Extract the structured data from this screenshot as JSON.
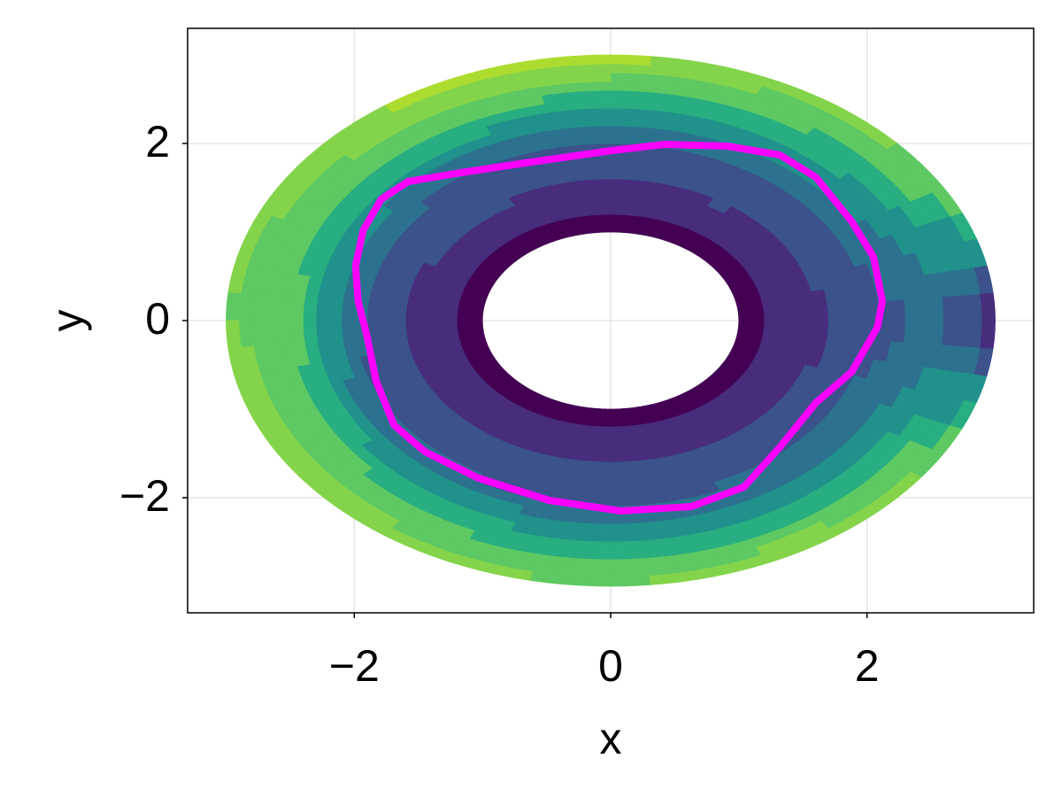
{
  "chart_data": {
    "type": "contour",
    "xlabel": "x",
    "ylabel": "y",
    "xlim": [
      -3.3,
      3.3
    ],
    "ylim": [
      -3.3,
      3.3
    ],
    "xticks": [
      {
        "value": -2,
        "label": "−2"
      },
      0,
      2
    ],
    "yticks": [
      {
        "value": -2,
        "label": "−2"
      },
      0,
      2
    ],
    "grid": true,
    "r": [
      1,
      1.5,
      2,
      2.5,
      3
    ],
    "theta": [
      0,
      30,
      60,
      90,
      120,
      150,
      180,
      210,
      240,
      270,
      300,
      330
    ],
    "z": [
      [
        0.5,
        0.5,
        0.5,
        0.5,
        0.5,
        0.5,
        0.5,
        0.5,
        0.5,
        0.5,
        0.5,
        0.5
      ],
      [
        1.5,
        1.8,
        1.9,
        1.8,
        1.9,
        1.9,
        1.6,
        1.9,
        1.9,
        1.8,
        1.9,
        1.8
      ],
      [
        2.6,
        3.1,
        3.0,
        2.8,
        3.0,
        3.2,
        3.3,
        2.9,
        2.7,
        2.6,
        2.8,
        3.0
      ],
      [
        3.0,
        5.0,
        5.5,
        5.5,
        6.0,
        6.0,
        6.5,
        6.0,
        5.5,
        5.0,
        5.0,
        5.0
      ],
      [
        1.0,
        7.0,
        7.5,
        8.5,
        8.5,
        7.5,
        7.0,
        8.0,
        7.5,
        7.0,
        8.0,
        7.0
      ]
    ],
    "levels": [
      0,
      1,
      2,
      3,
      4,
      5,
      6,
      7,
      8,
      9,
      10
    ],
    "colors": [
      "#440154",
      "#472d7b",
      "#3b528b",
      "#2c728e",
      "#21918c",
      "#28ae80",
      "#5ec962",
      "#84d44b",
      "#addc30",
      "#fde725"
    ],
    "contour_line": {
      "color": "#ff00ff",
      "x": [
        2.12,
        2.05,
        1.88,
        1.6,
        1.32,
        0.91,
        0.42,
        0.01,
        -0.62,
        -1.17,
        -1.58,
        -1.79,
        -1.93,
        -1.99,
        -1.97,
        -1.9,
        -1.83,
        -1.69,
        -1.45,
        -1.03,
        -0.48,
        0.08,
        0.63,
        1.04,
        1.32,
        1.6,
        1.88,
        2.08,
        2.12
      ],
      "y": [
        0.22,
        0.72,
        1.12,
        1.62,
        1.87,
        1.97,
        1.99,
        1.92,
        1.79,
        1.67,
        1.57,
        1.37,
        1.02,
        0.62,
        0.22,
        -0.18,
        -0.68,
        -1.18,
        -1.48,
        -1.78,
        -2.03,
        -2.15,
        -2.1,
        -1.88,
        -1.43,
        -0.93,
        -0.58,
        -0.08,
        0.22
      ]
    }
  }
}
